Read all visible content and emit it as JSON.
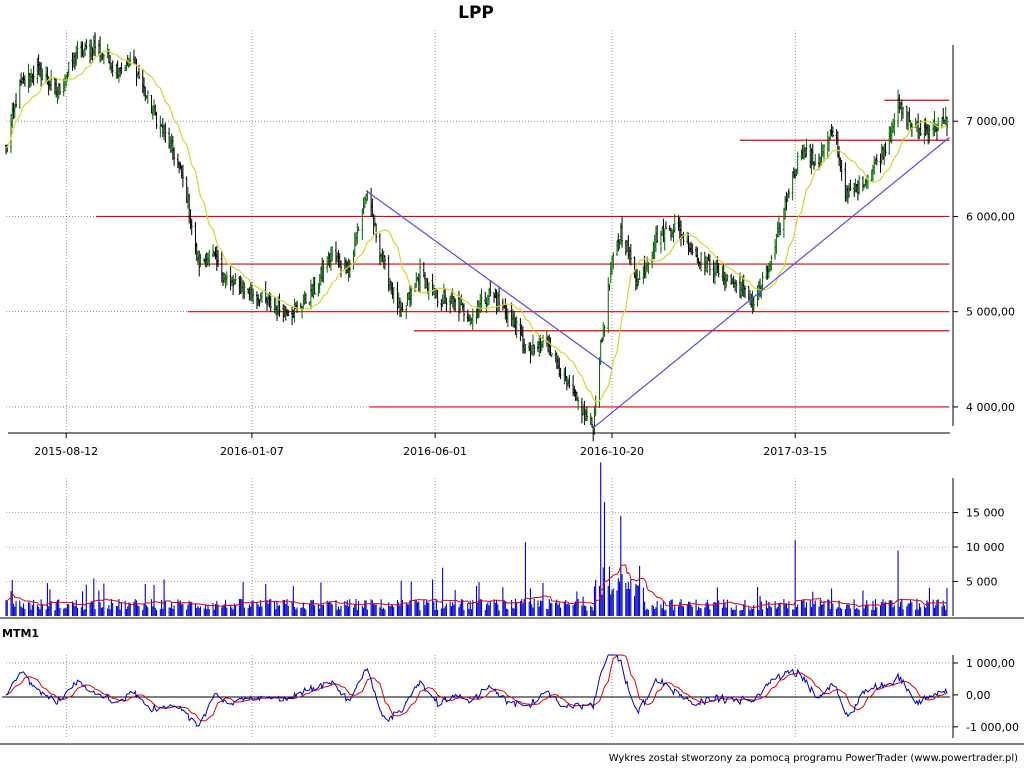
{
  "chart_data": [
    {
      "type": "candlestick",
      "title": "LPP",
      "x_start": "2015-06-25",
      "x_end": "2017-07-14",
      "y_ticks": [
        "4 000,00",
        "5 000,00",
        "6 000,00",
        "7 000,00"
      ],
      "y_tick_values": [
        4000,
        5000,
        6000,
        7000
      ],
      "ylim": [
        3800,
        7800
      ],
      "x_ticks": [
        "2015-08-12",
        "2016-01-07",
        "2016-06-01",
        "2016-10-20",
        "2017-03-15"
      ],
      "close_path": [
        [
          "2015-06-25",
          6700
        ],
        [
          "2015-07-05",
          7350
        ],
        [
          "2015-07-20",
          7550
        ],
        [
          "2015-08-05",
          7300
        ],
        [
          "2015-08-20",
          7700
        ],
        [
          "2015-09-05",
          7800
        ],
        [
          "2015-09-20",
          7550
        ],
        [
          "2015-10-05",
          7600
        ],
        [
          "2015-10-20",
          7100
        ],
        [
          "2015-11-05",
          6700
        ],
        [
          "2015-11-15",
          6300
        ],
        [
          "2015-11-25",
          5500
        ],
        [
          "2015-12-05",
          5600
        ],
        [
          "2015-12-20",
          5300
        ],
        [
          "2016-01-07",
          5200
        ],
        [
          "2016-01-25",
          5050
        ],
        [
          "2016-02-10",
          5000
        ],
        [
          "2016-02-25",
          5200
        ],
        [
          "2016-03-10",
          5600
        ],
        [
          "2016-03-25",
          5450
        ],
        [
          "2016-04-07",
          6250
        ],
        [
          "2016-04-20",
          5550
        ],
        [
          "2016-05-05",
          4950
        ],
        [
          "2016-05-20",
          5400
        ],
        [
          "2016-06-01",
          5150
        ],
        [
          "2016-06-15",
          5100
        ],
        [
          "2016-06-30",
          4950
        ],
        [
          "2016-07-15",
          5200
        ],
        [
          "2016-07-31",
          4950
        ],
        [
          "2016-08-15",
          4550
        ],
        [
          "2016-08-30",
          4700
        ],
        [
          "2016-09-15",
          4200
        ],
        [
          "2016-09-30",
          3900
        ],
        [
          "2016-10-05",
          3800
        ],
        [
          "2016-10-10",
          4500
        ],
        [
          "2016-10-20",
          5500
        ],
        [
          "2016-10-27",
          5850
        ],
        [
          "2016-11-10",
          5300
        ],
        [
          "2016-11-25",
          5800
        ],
        [
          "2016-12-10",
          5900
        ],
        [
          "2016-12-25",
          5600
        ],
        [
          "2017-01-10",
          5450
        ],
        [
          "2017-01-25",
          5300
        ],
        [
          "2017-02-10",
          5100
        ],
        [
          "2017-02-25",
          5550
        ],
        [
          "2017-03-10",
          6300
        ],
        [
          "2017-03-20",
          6700
        ],
        [
          "2017-04-01",
          6550
        ],
        [
          "2017-04-15",
          6900
        ],
        [
          "2017-04-25",
          6200
        ],
        [
          "2017-05-10",
          6400
        ],
        [
          "2017-05-25",
          6700
        ],
        [
          "2017-06-05",
          7150
        ],
        [
          "2017-06-20",
          6900
        ],
        [
          "2017-07-05",
          6950
        ],
        [
          "2017-07-14",
          7000
        ]
      ],
      "horizontal_levels": [
        {
          "value": 7220,
          "from": "2017-05-25",
          "to": "2017-07-16"
        },
        {
          "value": 6800,
          "from": "2017-01-30",
          "to": "2017-07-16"
        },
        {
          "value": 6000,
          "from": "2015-09-05",
          "to": "2017-07-16"
        },
        {
          "value": 5500,
          "from": "2015-11-24",
          "to": "2017-07-16"
        },
        {
          "value": 5000,
          "from": "2015-11-17",
          "to": "2017-07-16"
        },
        {
          "value": 4800,
          "from": "2016-05-15",
          "to": "2017-07-16"
        },
        {
          "value": 4000,
          "from": "2016-04-10",
          "to": "2017-07-16"
        }
      ],
      "trend_lines": [
        {
          "from": [
            "2016-04-07",
            6270
          ],
          "to": [
            "2016-10-20",
            4400
          ]
        },
        {
          "from": [
            "2016-10-05",
            3780
          ],
          "to": [
            "2017-07-16",
            6830
          ]
        }
      ],
      "colors": {
        "up": "#006400",
        "down": "#000000",
        "ma": "#d7d729",
        "levels": "#e60000",
        "trend": "#5050e6"
      }
    },
    {
      "type": "bar",
      "name": "volume",
      "y_ticks": [
        "5 000",
        "10 000",
        "15 000"
      ],
      "y_tick_values": [
        5000,
        10000,
        15000
      ],
      "ylim": [
        0,
        20000
      ],
      "spikes": [
        [
          "2015-08-22",
          4800
        ],
        [
          "2016-04-03",
          11500
        ],
        [
          "2016-06-07",
          7000
        ],
        [
          "2016-08-12",
          10700
        ],
        [
          "2016-10-11",
          19500
        ],
        [
          "2016-10-14",
          15000
        ],
        [
          "2016-10-27",
          12000
        ],
        [
          "2016-11-05",
          8000
        ],
        [
          "2017-03-15",
          11000
        ],
        [
          "2017-05-14",
          9000
        ],
        [
          "2017-06-05",
          9500
        ]
      ],
      "colors": {
        "bars": "#0000cc",
        "ma": "#e60000"
      }
    },
    {
      "type": "line",
      "name": "MTM1",
      "label": "MTM1",
      "y_ticks": [
        "1 000,00",
        "0,00",
        "-1 000,00"
      ],
      "y_tick_values": [
        1000,
        0,
        -1000
      ],
      "ylim": [
        -1350,
        1250
      ],
      "colors": {
        "line": "#0000cc",
        "signal": "#e60000",
        "zero": "#000000"
      }
    }
  ],
  "footer": "Wykres został stworzony za pomocą programu PowerTrader (www.powertrader.pl)"
}
